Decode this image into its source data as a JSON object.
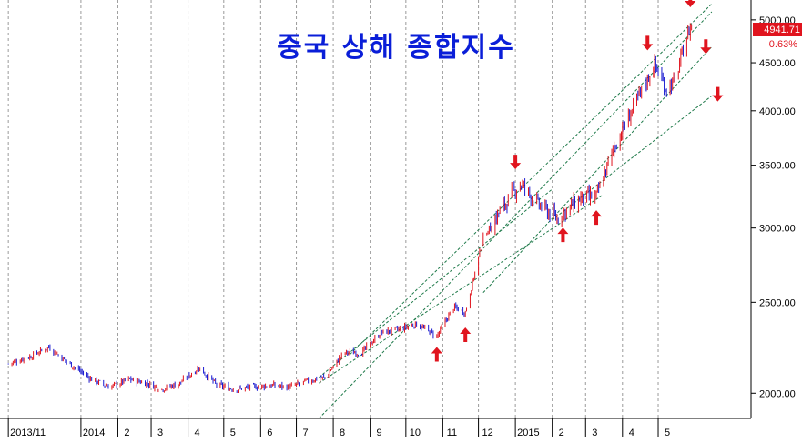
{
  "chart_data": {
    "type": "candlestick",
    "title": "중국 상해 종합지수",
    "last_value": "4941.71",
    "last_change": "0.63%",
    "y_scale": "log",
    "ylim": [
      1880,
      5250
    ],
    "y_ticks": [
      {
        "value": 2000,
        "label": "2000.00"
      },
      {
        "value": 2500,
        "label": "2500.00"
      },
      {
        "value": 3000,
        "label": "3000.00"
      },
      {
        "value": 3500,
        "label": "3500.00"
      },
      {
        "value": 4000,
        "label": "4000.00"
      },
      {
        "value": 4500,
        "label": "4500.00"
      },
      {
        "value": 5000,
        "label": "5000.00"
      }
    ],
    "x_ticks": [
      "2013/11",
      "2014",
      "2",
      "3",
      "4",
      "5",
      "6",
      "7",
      "8",
      "9",
      "10",
      "11",
      "12",
      "2015",
      "2",
      "3",
      "4",
      "5"
    ],
    "grid": true,
    "colors": {
      "up": "#e0141e",
      "down": "#1a1ad0",
      "trend": "#1f7a4a",
      "arrow": "#e0141e",
      "title": "#0a1ed8"
    },
    "series_close": [
      {
        "x": "2013-11-01",
        "y": 2150
      },
      {
        "x": "2013-11-20",
        "y": 2190
      },
      {
        "x": "2013-12-05",
        "y": 2240
      },
      {
        "x": "2013-12-20",
        "y": 2160
      },
      {
        "x": "2014-01-10",
        "y": 2070
      },
      {
        "x": "2014-01-25",
        "y": 2030
      },
      {
        "x": "2014-02-10",
        "y": 2070
      },
      {
        "x": "2014-02-25",
        "y": 2050
      },
      {
        "x": "2014-03-10",
        "y": 2020
      },
      {
        "x": "2014-03-25",
        "y": 2050
      },
      {
        "x": "2014-04-10",
        "y": 2130
      },
      {
        "x": "2014-04-25",
        "y": 2040
      },
      {
        "x": "2014-05-10",
        "y": 2020
      },
      {
        "x": "2014-05-25",
        "y": 2030
      },
      {
        "x": "2014-06-10",
        "y": 2040
      },
      {
        "x": "2014-06-25",
        "y": 2030
      },
      {
        "x": "2014-07-10",
        "y": 2060
      },
      {
        "x": "2014-07-25",
        "y": 2080
      },
      {
        "x": "2014-08-10",
        "y": 2210
      },
      {
        "x": "2014-08-25",
        "y": 2210
      },
      {
        "x": "2014-09-10",
        "y": 2320
      },
      {
        "x": "2014-09-25",
        "y": 2340
      },
      {
        "x": "2014-10-10",
        "y": 2370
      },
      {
        "x": "2014-10-27",
        "y": 2300
      },
      {
        "x": "2014-11-10",
        "y": 2470
      },
      {
        "x": "2014-11-20",
        "y": 2440
      },
      {
        "x": "2014-12-05",
        "y": 2930
      },
      {
        "x": "2014-12-20",
        "y": 3140
      },
      {
        "x": "2015-01-05",
        "y": 3350
      },
      {
        "x": "2015-01-20",
        "y": 3180
      },
      {
        "x": "2015-02-05",
        "y": 3070
      },
      {
        "x": "2015-02-25",
        "y": 3230
      },
      {
        "x": "2015-03-10",
        "y": 3240
      },
      {
        "x": "2015-03-25",
        "y": 3660
      },
      {
        "x": "2015-04-10",
        "y": 4030
      },
      {
        "x": "2015-04-28",
        "y": 4480
      },
      {
        "x": "2015-05-07",
        "y": 4230
      },
      {
        "x": "2015-05-15",
        "y": 4300
      },
      {
        "x": "2015-05-25",
        "y": 4800
      },
      {
        "x": "2015-05-29",
        "y": 4941.71
      }
    ],
    "channel_lines": [
      {
        "from": {
          "x": "2014-08-15",
          "y": 2200
        },
        "to": {
          "x": "2015-06-15",
          "y": 5200
        }
      },
      {
        "from": {
          "x": "2014-07-20",
          "y": 1880
        },
        "to": {
          "x": "2015-06-15",
          "y": 5100
        }
      },
      {
        "from": {
          "x": "2014-12-05",
          "y": 2560
        },
        "to": {
          "x": "2015-06-15",
          "y": 4680
        }
      },
      {
        "from": {
          "x": "2015-02-01",
          "y": 3060
        },
        "to": {
          "x": "2015-06-15",
          "y": 4150
        }
      },
      {
        "from": {
          "x": "2014-07-20",
          "y": 2050
        },
        "to": {
          "x": "2015-03-15",
          "y": 3250
        }
      },
      {
        "from": {
          "x": "2014-07-20",
          "y": 2080
        },
        "to": {
          "x": "2015-02-01",
          "y": 3300
        }
      }
    ],
    "arrows": [
      {
        "x": "2014-10-27",
        "y": 2230,
        "dir": "up"
      },
      {
        "x": "2014-11-20",
        "y": 2340,
        "dir": "up"
      },
      {
        "x": "2015-01-01",
        "y": 3480,
        "dir": "down"
      },
      {
        "x": "2015-02-10",
        "y": 2990,
        "dir": "up"
      },
      {
        "x": "2015-03-10",
        "y": 3120,
        "dir": "up"
      },
      {
        "x": "2015-04-22",
        "y": 4660,
        "dir": "down"
      },
      {
        "x": "2015-05-28",
        "y": 5180,
        "dir": "down"
      },
      {
        "x": "2015-06-10",
        "y": 4620,
        "dir": "down"
      },
      {
        "x": "2015-06-20",
        "y": 4110,
        "dir": "down"
      }
    ]
  }
}
